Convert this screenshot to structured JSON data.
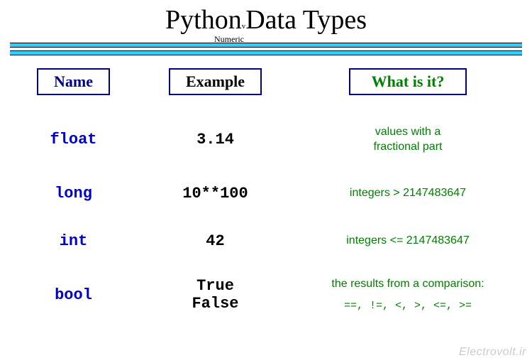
{
  "title_left": "Python",
  "title_sub": "v",
  "title_right": " Data Types",
  "subtitle": "Numeric",
  "headers": {
    "name": "Name",
    "example": "Example",
    "what": "What is it?"
  },
  "rows": [
    {
      "name": "float",
      "example": "3.14",
      "desc": "values with a\nfractional part"
    },
    {
      "name": "long",
      "example": "10**100",
      "desc": "integers > 2147483647"
    },
    {
      "name": "int",
      "example": "42",
      "desc": "integers <= 2147483647"
    },
    {
      "name": "bool",
      "example": "True\nFalse",
      "desc": "the results from a comparison:",
      "ops": "==,  !=,  <, >,  <=,  >="
    }
  ],
  "watermark": "Electrovolt.ir",
  "colors": {
    "rule": "#33ccff",
    "name_text": "#0000cd",
    "header_border": "#000080",
    "desc_text": "#008000",
    "example_text": "#000000",
    "background": "#ffffff"
  }
}
